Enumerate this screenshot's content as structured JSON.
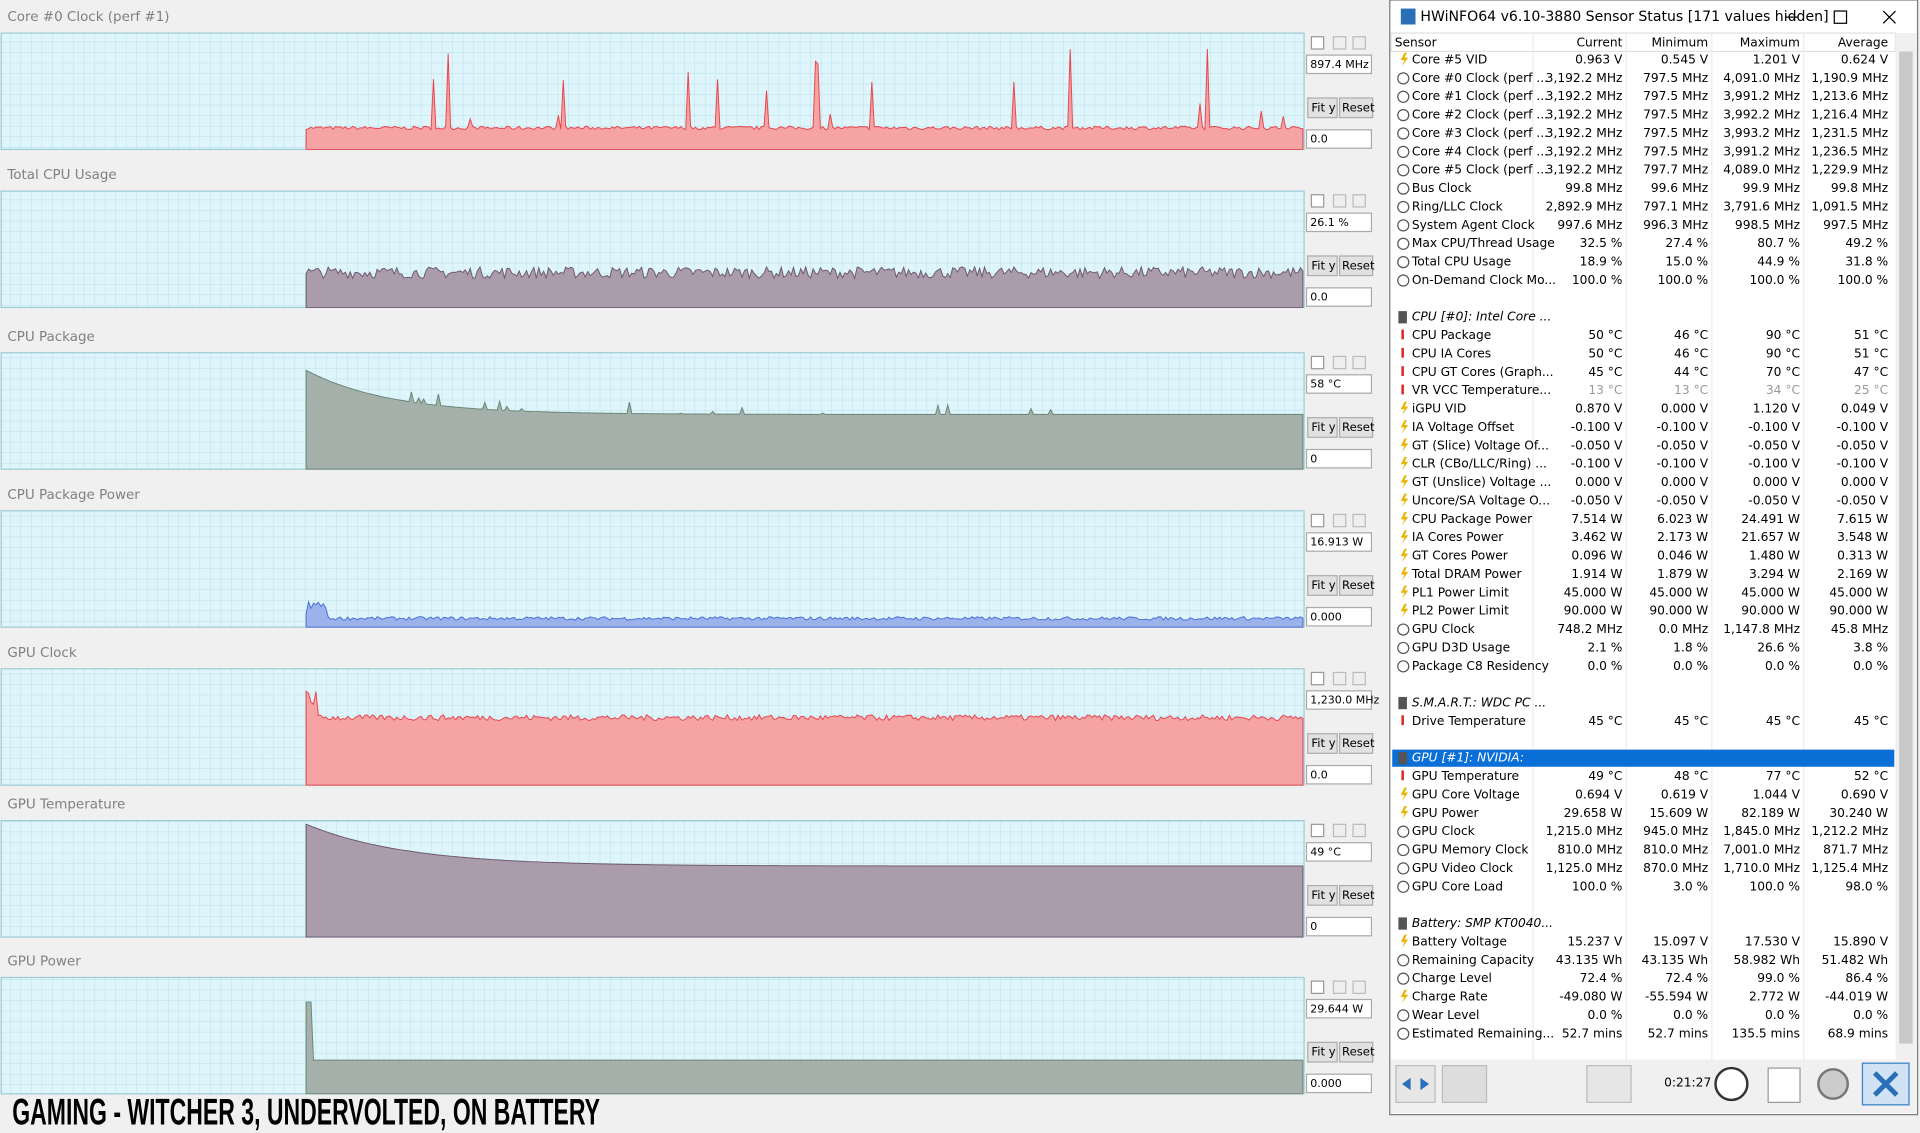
{
  "caption": "GAMING - WITCHER 3, UNDERVOLTED, ON BATTERY",
  "graphs": [
    {
      "title": "Core #0 Clock (perf #1)",
      "current": "897.4 MHz",
      "min": "0.0"
    },
    {
      "title": "Total CPU Usage",
      "current": "26.1 %",
      "min": "0.0"
    },
    {
      "title": "CPU Package",
      "current": "58 °C",
      "min": "0"
    },
    {
      "title": "CPU Package Power",
      "current": "16.913 W",
      "min": "0.000"
    },
    {
      "title": "GPU Clock",
      "current": "1,230.0 MHz",
      "min": "0.0"
    },
    {
      "title": "GPU Temperature",
      "current": "49 °C",
      "min": "0"
    },
    {
      "title": "GPU Power",
      "current": "29.644 W",
      "min": "0.000"
    }
  ],
  "buttons": {
    "fit": "Fit y",
    "reset": "Reset"
  },
  "window": {
    "title": "HWiNFO64 v6.10-3880 Sensor Status [171 values hidden]",
    "timer": "0:21:27"
  },
  "sensor_table": {
    "columns": [
      "Sensor",
      "Current",
      "Minimum",
      "Maximum",
      "Average"
    ],
    "sections": [
      {
        "rows": [
          [
            "Core #5 VID",
            "0.963 V",
            "0.545 V",
            "1.201 V",
            "0.624 V"
          ],
          [
            "Core #0 Clock (perf ...",
            "3,192.2 MHz",
            "797.5 MHz",
            "4,091.0 MHz",
            "1,190.9 MHz"
          ],
          [
            "Core #1 Clock (perf ...",
            "3,192.2 MHz",
            "797.5 MHz",
            "3,991.2 MHz",
            "1,213.6 MHz"
          ],
          [
            "Core #2 Clock (perf ...",
            "3,192.2 MHz",
            "797.5 MHz",
            "3,992.2 MHz",
            "1,216.4 MHz"
          ],
          [
            "Core #3 Clock (perf ...",
            "3,192.2 MHz",
            "797.5 MHz",
            "3,993.2 MHz",
            "1,231.5 MHz"
          ],
          [
            "Core #4 Clock (perf ...",
            "3,192.2 MHz",
            "797.5 MHz",
            "3,991.2 MHz",
            "1,236.5 MHz"
          ],
          [
            "Core #5 Clock (perf ...",
            "3,192.2 MHz",
            "797.7 MHz",
            "4,089.0 MHz",
            "1,229.9 MHz"
          ],
          [
            "Bus Clock",
            "99.8 MHz",
            "99.6 MHz",
            "99.9 MHz",
            "99.8 MHz"
          ],
          [
            "Ring/LLC Clock",
            "2,892.9 MHz",
            "797.1 MHz",
            "3,791.6 MHz",
            "1,091.5 MHz"
          ],
          [
            "System Agent Clock",
            "997.6 MHz",
            "996.3 MHz",
            "998.5 MHz",
            "997.5 MHz"
          ],
          [
            "Max CPU/Thread Usage",
            "32.5 %",
            "27.4 %",
            "80.7 %",
            "49.2 %"
          ],
          [
            "Total CPU Usage",
            "18.9 %",
            "15.0 %",
            "44.9 %",
            "31.8 %"
          ],
          [
            "On-Demand Clock Mo...",
            "100.0 %",
            "100.0 %",
            "100.0 %",
            "100.0 %"
          ]
        ]
      },
      {
        "title": "CPU [#0]: Intel Core ...",
        "rows": [
          [
            "CPU Package",
            "50 °C",
            "46 °C",
            "90 °C",
            "51 °C"
          ],
          [
            "CPU IA Cores",
            "50 °C",
            "46 °C",
            "90 °C",
            "51 °C"
          ],
          [
            "CPU GT Cores (Graph...",
            "45 °C",
            "44 °C",
            "70 °C",
            "47 °C"
          ],
          [
            "VR VCC Temperature...",
            "13 °C",
            "13 °C",
            "34 °C",
            "25 °C"
          ],
          [
            "iGPU VID",
            "0.870 V",
            "0.000 V",
            "1.120 V",
            "0.049 V"
          ],
          [
            "IA Voltage Offset",
            "-0.100 V",
            "-0.100 V",
            "-0.100 V",
            "-0.100 V"
          ],
          [
            "GT (Slice) Voltage Of...",
            "-0.050 V",
            "-0.050 V",
            "-0.050 V",
            "-0.050 V"
          ],
          [
            "CLR (CBo/LLC/Ring) ...",
            "-0.100 V",
            "-0.100 V",
            "-0.100 V",
            "-0.100 V"
          ],
          [
            "GT (Unslice) Voltage ...",
            "0.000 V",
            "0.000 V",
            "0.000 V",
            "0.000 V"
          ],
          [
            "Uncore/SA Voltage O...",
            "-0.050 V",
            "-0.050 V",
            "-0.050 V",
            "-0.050 V"
          ],
          [
            "CPU Package Power",
            "7.514 W",
            "6.023 W",
            "24.491 W",
            "7.615 W"
          ],
          [
            "IA Cores Power",
            "3.462 W",
            "2.173 W",
            "21.657 W",
            "3.548 W"
          ],
          [
            "GT Cores Power",
            "0.096 W",
            "0.046 W",
            "1.480 W",
            "0.313 W"
          ],
          [
            "Total DRAM Power",
            "1.914 W",
            "1.879 W",
            "3.294 W",
            "2.169 W"
          ],
          [
            "PL1 Power Limit",
            "45.000 W",
            "45.000 W",
            "45.000 W",
            "45.000 W"
          ],
          [
            "PL2 Power Limit",
            "90.000 W",
            "90.000 W",
            "90.000 W",
            "90.000 W"
          ],
          [
            "GPU Clock",
            "748.2 MHz",
            "0.0 MHz",
            "1,147.8 MHz",
            "45.8 MHz"
          ],
          [
            "GPU D3D Usage",
            "2.1 %",
            "1.8 %",
            "26.6 %",
            "3.8 %"
          ],
          [
            "Package C8 Residency",
            "0.0 %",
            "0.0 %",
            "0.0 %",
            "0.0 %"
          ]
        ]
      },
      {
        "title": "S.M.A.R.T.: WDC PC ...",
        "rows": [
          [
            "Drive Temperature",
            "45 °C",
            "45 °C",
            "45 °C",
            "45 °C"
          ]
        ]
      },
      {
        "title": "GPU [#1]: NVIDIA:",
        "rows": [
          [
            "GPU Temperature",
            "49 °C",
            "48 °C",
            "77 °C",
            "52 °C"
          ],
          [
            "GPU Core Voltage",
            "0.694 V",
            "0.619 V",
            "1.044 V",
            "0.690 V"
          ],
          [
            "GPU Power",
            "29.658 W",
            "15.609 W",
            "82.189 W",
            "30.240 W"
          ],
          [
            "GPU Clock",
            "1,215.0 MHz",
            "945.0 MHz",
            "1,845.0 MHz",
            "1,212.2 MHz"
          ],
          [
            "GPU Memory Clock",
            "810.0 MHz",
            "810.0 MHz",
            "7,001.0 MHz",
            "871.7 MHz"
          ],
          [
            "GPU Video Clock",
            "1,125.0 MHz",
            "870.0 MHz",
            "1,710.0 MHz",
            "1,125.4 MHz"
          ],
          [
            "GPU Core Load",
            "100.0 %",
            "3.0 %",
            "100.0 %",
            "98.0 %"
          ]
        ]
      },
      {
        "title": "Battery: SMP KT0040...",
        "rows": [
          [
            "Battery Voltage",
            "15.237 V",
            "15.097 V",
            "17.530 V",
            "15.890 V"
          ],
          [
            "Remaining Capacity",
            "43.135 Wh",
            "43.135 Wh",
            "58.982 Wh",
            "51.482 Wh"
          ],
          [
            "Charge Level",
            "72.4 %",
            "72.4 %",
            "99.0 %",
            "86.4 %"
          ],
          [
            "Charge Rate",
            "-49.080 W",
            "-55.594 W",
            "2.772 W",
            "-44.019 W"
          ],
          [
            "Wear Level",
            "0.0 %",
            "0.0 %",
            "0.0 %",
            "0.0 %"
          ],
          [
            "Estimated Remaining...",
            "52.7 mins",
            "52.7 mins",
            "135.5 mins",
            "68.9 mins"
          ]
        ]
      }
    ]
  }
}
